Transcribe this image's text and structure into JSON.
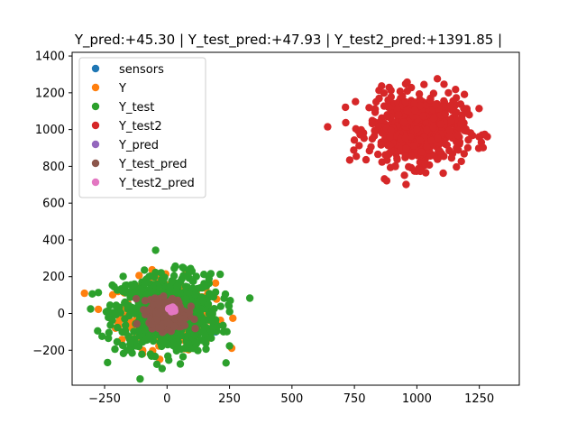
{
  "chart_data": {
    "type": "scatter",
    "title": "Y_pred:+45.30 | Y_test_pred:+47.93 | Y_test2_pred:+1391.85 |",
    "xlabel": "",
    "ylabel": "",
    "xlim": [
      -380,
      1410
    ],
    "ylim": [
      -390,
      1420
    ],
    "xticks": [
      -250,
      0,
      250,
      500,
      750,
      1000,
      1250
    ],
    "yticks": [
      -200,
      0,
      200,
      400,
      600,
      800,
      1000,
      1200,
      1400
    ],
    "xtick_labels": [
      "−250",
      "0",
      "250",
      "500",
      "750",
      "1000",
      "1250"
    ],
    "ytick_labels": [
      "−200",
      "0",
      "200",
      "400",
      "600",
      "800",
      "1000",
      "1200",
      "1400"
    ],
    "grid": false,
    "legend_position": "upper left",
    "series": [
      {
        "name": "sensors",
        "color": "#1f77b4",
        "points": [
          [
            195,
            -100
          ],
          [
            150,
            -30
          ],
          [
            -30,
            40
          ]
        ]
      },
      {
        "name": "Y",
        "color": "#ff7f0e",
        "cluster": {
          "center": [
            0,
            0
          ],
          "spread": [
            95,
            95
          ],
          "count": 260
        }
      },
      {
        "name": "Y_test",
        "color": "#2ca02c",
        "cluster": {
          "center": [
            0,
            0
          ],
          "spread": [
            105,
            105
          ],
          "count": 700
        }
      },
      {
        "name": "Y_test2",
        "color": "#d62728",
        "cluster": {
          "center": [
            1000,
            1000
          ],
          "spread": [
            95,
            95
          ],
          "count": 650
        }
      },
      {
        "name": "Y_pred",
        "color": "#9467bd",
        "points": [
          [
            20,
            20
          ],
          [
            25,
            25
          ]
        ]
      },
      {
        "name": "Y_test_pred",
        "color": "#8c564b",
        "cluster": {
          "center": [
            5,
            0
          ],
          "spread": [
            38,
            38
          ],
          "count": 300
        }
      },
      {
        "name": "Y_test2_pred",
        "color": "#e377c2",
        "cluster": {
          "center": [
            18,
            22
          ],
          "spread": [
            8,
            8
          ],
          "count": 20
        }
      }
    ]
  }
}
